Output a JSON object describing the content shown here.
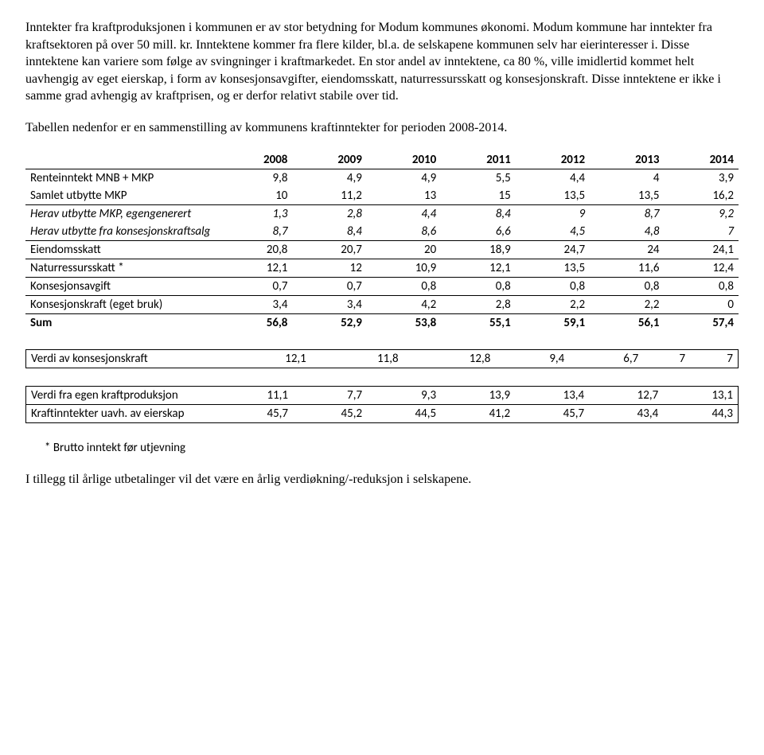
{
  "paragraphs": {
    "p1": "Inntekter fra kraftproduksjonen i kommunen er av stor betydning for Modum kommunes økonomi. Modum kommune har inntekter fra kraftsektoren på over 50 mill. kr. Inntektene kommer fra flere kilder, bl.a. de selskapene kommunen selv har eierinteresser i. Disse inntektene kan variere som følge av svingninger i kraftmarkedet. En stor andel av inntektene, ca 80 %, ville imidlertid kommet helt uavhengig av eget eierskap, i form av konsesjonsavgifter, eiendomsskatt, naturressursskatt og konsesjonskraft. Disse inntektene er ikke i samme grad avhengig av kraftprisen, og er derfor relativt stabile over tid.",
    "p2": "Tabellen nedenfor er en sammenstilling av kommunens kraftinntekter for perioden 2008-2014.",
    "footnote": "* Brutto inntekt før utjevning",
    "p3": "I tillegg til årlige utbetalinger vil det være en årlig verdiøkning/-reduksjon i selskapene."
  },
  "mainTable": {
    "columns": [
      "2008",
      "2009",
      "2010",
      "2011",
      "2012",
      "2013",
      "2014"
    ],
    "rows": [
      {
        "label": "Renteinntekt MNB + MKP",
        "values": [
          "9,8",
          "4,9",
          "4,9",
          "5,5",
          "4,4",
          "4",
          "3,9"
        ],
        "italic": false,
        "underline": false
      },
      {
        "label": "Samlet utbytte MKP",
        "values": [
          "10",
          "11,2",
          "13",
          "15",
          "13,5",
          "13,5",
          "16,2"
        ],
        "italic": false,
        "underline": true
      },
      {
        "label": "Herav utbytte MKP, egengenerert",
        "values": [
          "1,3",
          "2,8",
          "4,4",
          "8,4",
          "9",
          "8,7",
          "9,2"
        ],
        "italic": true,
        "underline": false
      },
      {
        "label": "Herav utbytte fra konsesjonskraftsalg",
        "values": [
          "8,7",
          "8,4",
          "8,6",
          "6,6",
          "4,5",
          "4,8",
          "7"
        ],
        "italic": true,
        "underline": true
      },
      {
        "label": "Eiendomsskatt",
        "values": [
          "20,8",
          "20,7",
          "20",
          "18,9",
          "24,7",
          "24",
          "24,1"
        ],
        "italic": false,
        "underline": true
      },
      {
        "label": "Naturressursskatt *",
        "values": [
          "12,1",
          "12",
          "10,9",
          "12,1",
          "13,5",
          "11,6",
          "12,4"
        ],
        "italic": false,
        "underline": true
      },
      {
        "label": "Konsesjonsavgift",
        "values": [
          "0,7",
          "0,7",
          "0,8",
          "0,8",
          "0,8",
          "0,8",
          "0,8"
        ],
        "italic": false,
        "underline": true
      },
      {
        "label": "Konsesjonskraft (eget bruk)",
        "values": [
          "3,4",
          "3,4",
          "4,2",
          "2,8",
          "2,2",
          "2,2",
          "0"
        ],
        "italic": false,
        "underline": true
      }
    ],
    "sum": {
      "label": "Sum",
      "values": [
        "56,8",
        "52,9",
        "53,8",
        "55,1",
        "59,1",
        "56,1",
        "57,4"
      ]
    }
  },
  "table2": {
    "rows": [
      {
        "label": "Verdi av konsesjonskraft",
        "values": [
          "12,1",
          "11,8",
          "12,8",
          "9,4",
          "6,7",
          "7",
          "7"
        ]
      }
    ]
  },
  "table3": {
    "rows": [
      {
        "label": "Verdi fra egen kraftproduksjon",
        "values": [
          "11,1",
          "7,7",
          "9,3",
          "13,9",
          "13,4",
          "12,7",
          "13,1"
        ],
        "sep": false
      },
      {
        "label": "Kraftinntekter uavh. av eierskap",
        "values": [
          "45,7",
          "45,2",
          "44,5",
          "41,2",
          "45,7",
          "43,4",
          "44,3"
        ],
        "sep": true
      }
    ]
  },
  "style": {
    "body_font": "Times New Roman",
    "body_fontsize_pt": 12,
    "table_font": "Calibri",
    "table_fontsize_pt": 11,
    "text_color": "#000000",
    "background_color": "#ffffff",
    "border_color": "#000000"
  }
}
